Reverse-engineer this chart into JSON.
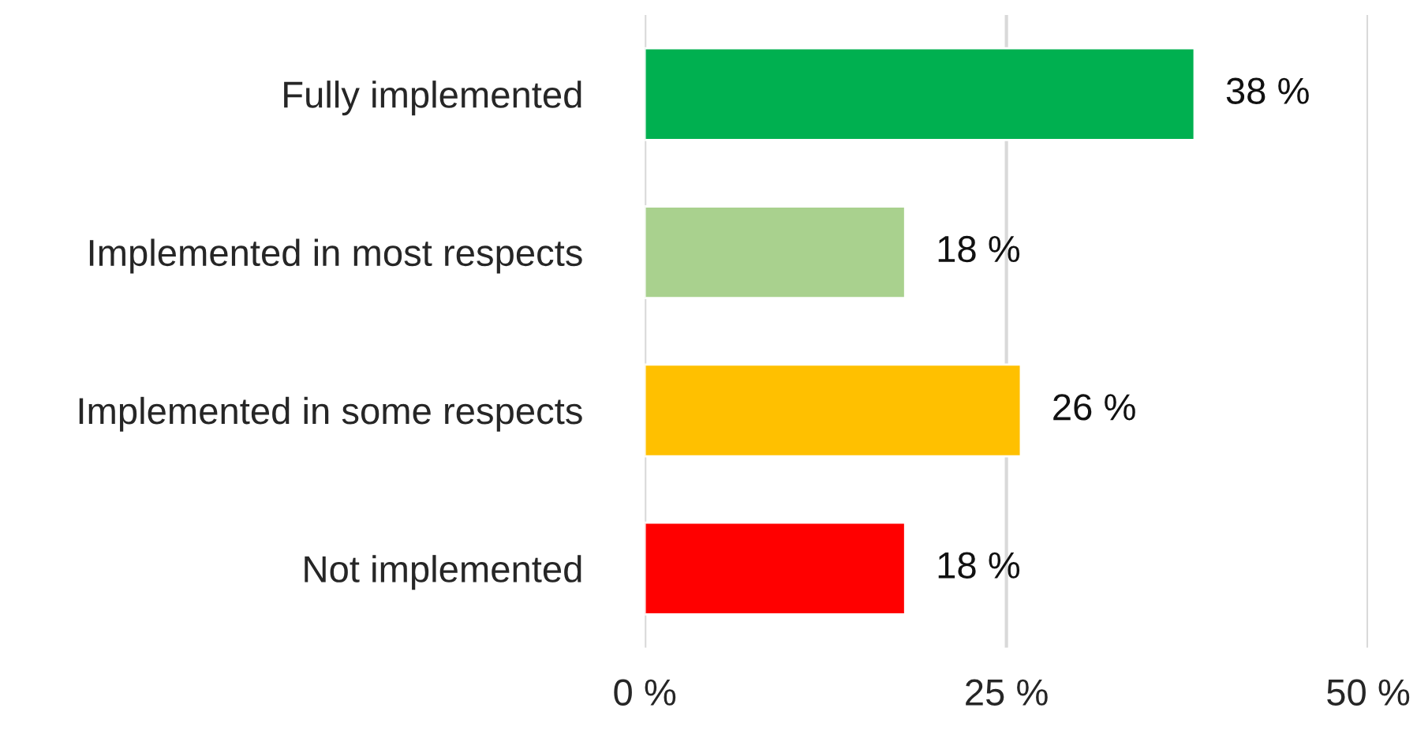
{
  "chart_data": {
    "type": "bar",
    "orientation": "horizontal",
    "categories": [
      "Fully implemented",
      "Implemented in most respects",
      "Implemented in some respects",
      "Not implemented"
    ],
    "values": [
      38,
      18,
      26,
      18
    ],
    "colors": [
      "#00b050",
      "#a9d18e",
      "#ffc000",
      "#ff0000"
    ],
    "value_labels": [
      "38 %",
      "18 %",
      "26 %",
      "18 %"
    ],
    "xlim": [
      0,
      50
    ],
    "xticks": [
      {
        "value": 0,
        "label": "0 %"
      },
      {
        "value": 25,
        "label": "25 %"
      },
      {
        "value": 50,
        "label": "50 %"
      }
    ],
    "grid": "x"
  }
}
